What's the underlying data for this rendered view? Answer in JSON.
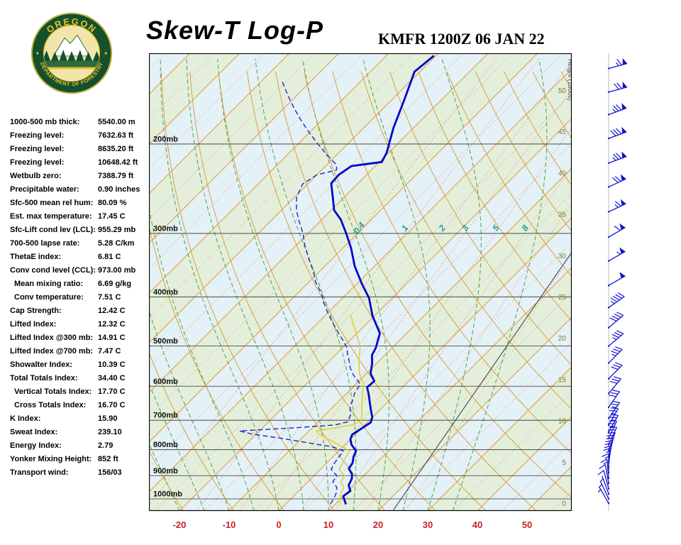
{
  "header": {
    "title": "Skew-T Log-P",
    "station": "KMFR 1200Z 06 JAN 22"
  },
  "logo": {
    "top_text": "OREGON",
    "bottom_text": "DEPARTMENT OF FORESTRY"
  },
  "indices": [
    {
      "label": "1000-500 mb thick:",
      "value": "5540.00 m",
      "indent": false
    },
    {
      "label": "Freezing level:",
      "value": "7632.63 ft",
      "indent": false
    },
    {
      "label": "Freezing level:",
      "value": "8635.20 ft",
      "indent": false
    },
    {
      "label": "Freezing level:",
      "value": "10648.42 ft",
      "indent": false
    },
    {
      "label": "Wetbulb zero:",
      "value": "7388.79 ft",
      "indent": false
    },
    {
      "label": "Precipitable water:",
      "value": "0.90 inches",
      "indent": false
    },
    {
      "label": "Sfc-500 mean rel hum:",
      "value": "80.09 %",
      "indent": false
    },
    {
      "label": "Est. max temperature:",
      "value": "17.45 C",
      "indent": false
    },
    {
      "label": "Sfc-Lift cond lev (LCL):",
      "value": "955.29 mb",
      "indent": false
    },
    {
      "label": "700-500 lapse rate:",
      "value": "5.28 C/km",
      "indent": false
    },
    {
      "label": "ThetaE index:",
      "value": "6.81 C",
      "indent": false
    },
    {
      "label": "Conv cond level (CCL):",
      "value": "973.00 mb",
      "indent": false
    },
    {
      "label": "Mean mixing ratio:",
      "value": "6.69 g/kg",
      "indent": true
    },
    {
      "label": "Conv temperature:",
      "value": "7.51 C",
      "indent": true
    },
    {
      "label": "Cap Strength:",
      "value": "12.42 C",
      "indent": false
    },
    {
      "label": "Lifted Index:",
      "value": "12.32 C",
      "indent": false
    },
    {
      "label": "Lifted Index @300 mb:",
      "value": "14.91 C",
      "indent": false
    },
    {
      "label": "Lifted Index @700 mb:",
      "value": "7.47 C",
      "indent": false
    },
    {
      "label": "Showalter Index:",
      "value": "10.39 C",
      "indent": false
    },
    {
      "label": "Total Totals Index:",
      "value": "34.40 C",
      "indent": false
    },
    {
      "label": "Vertical Totals Index:",
      "value": "17.70 C",
      "indent": true
    },
    {
      "label": "Cross Totals Index:",
      "value": "16.70 C",
      "indent": true
    },
    {
      "label": "K Index:",
      "value": "15.90",
      "indent": false
    },
    {
      "label": "Sweat Index:",
      "value": "239.10",
      "indent": false
    },
    {
      "label": "Energy Index:",
      "value": "2.79",
      "indent": false
    },
    {
      "label": "Yonker Mixing Height:",
      "value": "852 ft",
      "indent": false
    },
    {
      "label": "Transport wind:",
      "value": "156/03",
      "indent": false
    }
  ],
  "chart_data": {
    "type": "line",
    "title": "Skew-T Log-P sounding",
    "pressure_axis": {
      "levels": [
        200,
        300,
        400,
        500,
        600,
        700,
        800,
        900,
        1000
      ],
      "suffix": "mb",
      "top": 133,
      "bottom": 1056
    },
    "temp_axis": {
      "ticks": [
        -20,
        -10,
        0,
        10,
        20,
        30,
        40,
        50
      ],
      "unit": "C",
      "skew_deg": 45
    },
    "height_axis": {
      "label": "Height (1000s)",
      "ticks": [
        0,
        5,
        10,
        15,
        20,
        25,
        30,
        35,
        40,
        45,
        50
      ]
    },
    "isotherms": {
      "start": -120,
      "end": 60,
      "step": 10
    },
    "dry_adiabats": {
      "start_theta_k": 250,
      "end_theta_k": 450,
      "step": 10
    },
    "moist_adiabats": {
      "start_c": -20,
      "end_c": 35,
      "step": 5
    },
    "mixing_ratio": {
      "lines": [
        0.4,
        1,
        2,
        3,
        5,
        8,
        12,
        20
      ],
      "labels": [
        0.4,
        1,
        2,
        3,
        5,
        8
      ],
      "label_pressure": 295
    },
    "series": {
      "temperature": [
        [
          1025,
          12.2
        ],
        [
          1008,
          11.2
        ],
        [
          988,
          10.0
        ],
        [
          965,
          10.4
        ],
        [
          940,
          8.9
        ],
        [
          912,
          8.2
        ],
        [
          895,
          7.4
        ],
        [
          872,
          5.6
        ],
        [
          850,
          5.2
        ],
        [
          825,
          4.1
        ],
        [
          805,
          3.5
        ],
        [
          782,
          1.3
        ],
        [
          763,
          0.0
        ],
        [
          747,
          -0.6
        ],
        [
          729,
          0.0
        ],
        [
          707,
          0.7
        ],
        [
          691,
          0.0
        ],
        [
          668,
          -1.8
        ],
        [
          646,
          -3.5
        ],
        [
          622,
          -5.4
        ],
        [
          603,
          -7.1
        ],
        [
          586,
          -6.9
        ],
        [
          566,
          -9.2
        ],
        [
          541,
          -10.9
        ],
        [
          521,
          -12.6
        ],
        [
          504,
          -13.3
        ],
        [
          472,
          -15.4
        ],
        [
          436,
          -20.4
        ],
        [
          402,
          -24.7
        ],
        [
          377,
          -29.0
        ],
        [
          348,
          -34.0
        ],
        [
          321,
          -38.3
        ],
        [
          300,
          -42.3
        ],
        [
          282,
          -46.1
        ],
        [
          270,
          -49.4
        ],
        [
          255,
          -52.2
        ],
        [
          239,
          -55.4
        ],
        [
          230,
          -55.6
        ],
        [
          221,
          -54.8
        ],
        [
          217,
          -49.5
        ],
        [
          208,
          -50.4
        ],
        [
          186,
          -54.0
        ],
        [
          163,
          -57.6
        ],
        [
          144,
          -61.1
        ],
        [
          134,
          -60.4
        ]
      ],
      "dewpoint": [
        [
          1023,
          9.0
        ],
        [
          1000,
          8.6
        ],
        [
          975,
          8.0
        ],
        [
          950,
          7.0
        ],
        [
          925,
          5.0
        ],
        [
          900,
          4.6
        ],
        [
          875,
          2.2
        ],
        [
          850,
          1.6
        ],
        [
          825,
          1.2
        ],
        [
          805,
          1.0
        ],
        [
          790,
          -2.0
        ],
        [
          775,
          -8.0
        ],
        [
          760,
          -14.0
        ],
        [
          745,
          -21.0
        ],
        [
          735,
          -24.0
        ],
        [
          725,
          -14.0
        ],
        [
          715,
          -6.0
        ],
        [
          705,
          -4.0
        ],
        [
          695,
          -4.4
        ],
        [
          680,
          -5.0
        ],
        [
          665,
          -6.2
        ],
        [
          650,
          -7.0
        ],
        [
          635,
          -7.6
        ],
        [
          620,
          -8.4
        ],
        [
          605,
          -8.8
        ],
        [
          595,
          -9.0
        ],
        [
          580,
          -11.0
        ],
        [
          565,
          -13.0
        ],
        [
          550,
          -14.6
        ],
        [
          535,
          -16.0
        ],
        [
          520,
          -17.6
        ],
        [
          505,
          -19.0
        ],
        [
          490,
          -21.0
        ],
        [
          470,
          -24.0
        ],
        [
          450,
          -27.0
        ],
        [
          430,
          -30.0
        ],
        [
          410,
          -33.0
        ],
        [
          395,
          -35.0
        ],
        [
          375,
          -38.5
        ],
        [
          355,
          -41.5
        ],
        [
          335,
          -45.0
        ],
        [
          315,
          -48.5
        ],
        [
          300,
          -51.0
        ],
        [
          285,
          -54.0
        ],
        [
          270,
          -57.0
        ],
        [
          255,
          -59.5
        ],
        [
          240,
          -61.0
        ],
        [
          230,
          -60.0
        ],
        [
          225,
          -57.0
        ],
        [
          220,
          -58.0
        ],
        [
          210,
          -62.0
        ],
        [
          200,
          -66.0
        ],
        [
          190,
          -70.0
        ],
        [
          180,
          -74.0
        ],
        [
          170,
          -78.0
        ],
        [
          160,
          -82.0
        ],
        [
          150,
          -86.0
        ]
      ],
      "wetbulb": [
        [
          1020,
          10.5
        ],
        [
          1000,
          9.8
        ],
        [
          975,
          9.0
        ],
        [
          950,
          8.4
        ],
        [
          925,
          6.6
        ],
        [
          900,
          6.2
        ],
        [
          875,
          3.8
        ],
        [
          850,
          3.2
        ],
        [
          825,
          2.6
        ],
        [
          805,
          2.2
        ],
        [
          790,
          0.0
        ],
        [
          775,
          -2.5
        ],
        [
          760,
          -5.0
        ],
        [
          745,
          -7.5
        ],
        [
          735,
          -8.5
        ],
        [
          725,
          -5.5
        ],
        [
          715,
          -2.5
        ],
        [
          705,
          -1.5
        ],
        [
          695,
          -2.0
        ],
        [
          680,
          -2.8
        ],
        [
          665,
          -3.8
        ],
        [
          650,
          -4.8
        ],
        [
          635,
          -5.8
        ],
        [
          620,
          -6.8
        ],
        [
          605,
          -7.8
        ],
        [
          595,
          -8.4
        ],
        [
          580,
          -10.0
        ],
        [
          565,
          -11.5
        ],
        [
          550,
          -12.8
        ],
        [
          535,
          -14.0
        ],
        [
          520,
          -15.2
        ],
        [
          505,
          -16.4
        ],
        [
          490,
          -18.0
        ],
        [
          470,
          -20.4
        ],
        [
          450,
          -23.0
        ],
        [
          435,
          -24.8
        ]
      ]
    },
    "reference_line": [
      [
        1052,
        22.9
      ],
      [
        326,
        6.9
      ]
    ],
    "winds": [
      [
        1020,
        150,
        3
      ],
      [
        1000,
        155,
        5
      ],
      [
        978,
        160,
        5
      ],
      [
        955,
        165,
        10
      ],
      [
        932,
        170,
        10
      ],
      [
        910,
        175,
        15
      ],
      [
        888,
        180,
        15
      ],
      [
        866,
        185,
        15
      ],
      [
        845,
        190,
        20
      ],
      [
        824,
        195,
        20
      ],
      [
        803,
        200,
        20
      ],
      [
        782,
        205,
        20
      ],
      [
        760,
        205,
        25
      ],
      [
        738,
        210,
        25
      ],
      [
        716,
        210,
        25
      ],
      [
        694,
        215,
        25
      ],
      [
        660,
        215,
        30
      ],
      [
        620,
        220,
        30
      ],
      [
        580,
        225,
        30
      ],
      [
        540,
        225,
        35
      ],
      [
        500,
        230,
        35
      ],
      [
        460,
        230,
        40
      ],
      [
        420,
        235,
        45
      ],
      [
        380,
        240,
        50
      ],
      [
        340,
        240,
        55
      ],
      [
        305,
        240,
        60
      ],
      [
        272,
        245,
        65
      ],
      [
        243,
        245,
        70
      ],
      [
        218,
        250,
        75
      ],
      [
        195,
        250,
        80
      ],
      [
        175,
        250,
        75
      ],
      [
        158,
        255,
        70
      ],
      [
        142,
        255,
        65
      ]
    ],
    "colors": {
      "band_green": "#e3efdb",
      "band_blue": "#e4f1f6",
      "isotherm": "#e29a3c",
      "isotherm_minor": "#dd9a9a",
      "dry_adiabat": "#d9982f",
      "moist_adiabat": "#4ea24e",
      "mixing_ratio": "#e09090",
      "mixing_label": "#18a0a0",
      "pressure_line": "#333333",
      "pressure_label": "#111111",
      "temperature": "#0008c8",
      "dewpoint": "#2222cc",
      "wetbulb": "#e3cf3e",
      "reference": "#444444",
      "temp_axis_label": "#cc2222",
      "height_label": "#7c7c2e",
      "wind": "#1414cc",
      "border": "#000000"
    }
  }
}
